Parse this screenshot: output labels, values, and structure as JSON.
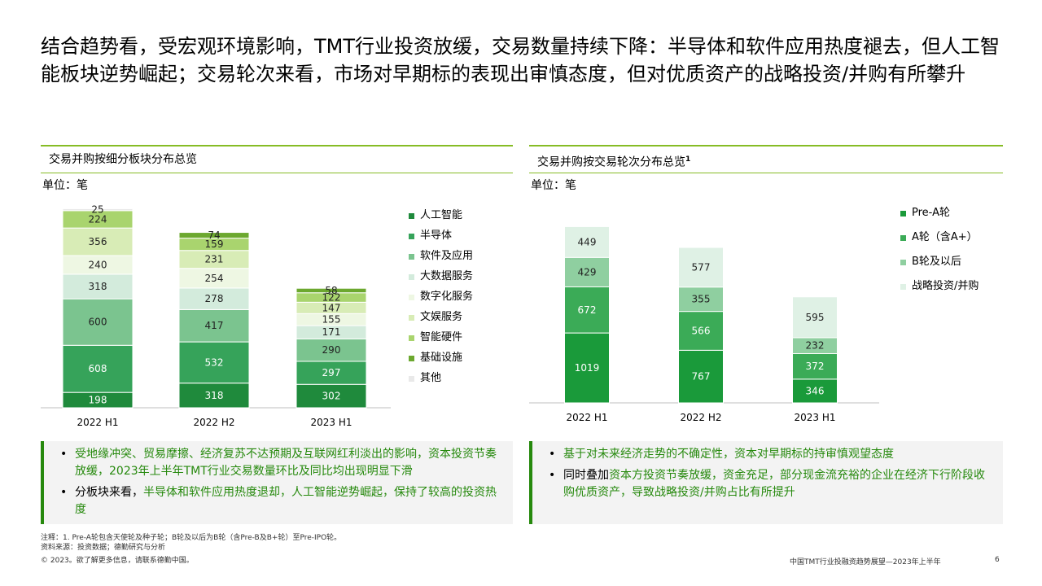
{
  "title": "结合趋势看，受宏观环境影响，TMT行业投资放缓，交易数量持续下降：半导体和软件应用热度褪去，但人工智能板块逆势崛起；交易轮次来看，市场对早期标的表现出审慎态度，但对优质资产的战略投资/并购有所攀升",
  "left_panel": {
    "heading": "交易并购按细分板块分布总览",
    "unit": "单位：笔",
    "legend": [
      "人工智能",
      "半导体",
      "软件及应用",
      "大数据服务",
      "数字化服务",
      "文娱服务",
      "智能硬件",
      "基础设施",
      "其他"
    ],
    "bullets": [
      {
        "text": "受地缘冲突、贸易摩擦、经济复苏不达预期及互联网红利淡出的影响，资本投资节奏放缓，2023年上半年TMT行业交易数量环比及同比均出现明显下滑",
        "highlight": false
      },
      {
        "prefix": "分板块来看，",
        "text": "半导体和软件应用热度退却，人工智能逆势崛起，保持了较高的投资热度",
        "highlight": true
      }
    ]
  },
  "right_panel": {
    "heading": "交易并购按交易轮次分布总览",
    "heading_sup": "1",
    "unit": "单位：笔",
    "legend": [
      "Pre-A轮",
      "A轮（含A+）",
      "B轮及以后",
      "战略投资/并购"
    ],
    "bullets": [
      {
        "text": "基于对未来经济走势的不确定性，资本对早期标的持审慎观望态度",
        "highlight": true
      },
      {
        "prefix": "同时叠加",
        "text": "资本方投资节奏放缓，资金充足，部分现金流充裕的企业在经济下行阶段收购优质资产，导致战略投资/并购占比有所提升",
        "highlight": false
      }
    ]
  },
  "chart_data": [
    {
      "type": "bar",
      "stacked": true,
      "title": "交易并购按细分板块分布总览",
      "ylabel": "单位：笔",
      "categories": [
        "2022 H1",
        "2022 H2",
        "2023 H1"
      ],
      "series": [
        {
          "name": "人工智能",
          "values": [
            198,
            318,
            302
          ],
          "color": "#1f8a3c"
        },
        {
          "name": "半导体",
          "values": [
            608,
            532,
            297
          ],
          "color": "#36a35a"
        },
        {
          "name": "软件及应用",
          "values": [
            600,
            417,
            290
          ],
          "color": "#7bc48f"
        },
        {
          "name": "大数据服务",
          "values": [
            318,
            278,
            171
          ],
          "color": "#d3ebdc"
        },
        {
          "name": "数字化服务",
          "values": [
            240,
            254,
            155
          ],
          "color": "#eef7e3"
        },
        {
          "name": "文娱服务",
          "values": [
            356,
            231,
            147
          ],
          "color": "#d8ecb6"
        },
        {
          "name": "智能硬件",
          "values": [
            224,
            159,
            122
          ],
          "color": "#a9d46e"
        },
        {
          "name": "基础设施",
          "values": [
            0,
            74,
            58
          ],
          "color": "#6ca82f"
        },
        {
          "name": "其他",
          "values": [
            25,
            0,
            0
          ],
          "color": "#e9e9e9"
        }
      ],
      "labels_per_bar": [
        [
          "198",
          "608",
          "600",
          "318",
          "240",
          "356",
          "224",
          "",
          "25"
        ],
        [
          "318",
          "532",
          "417",
          "278",
          "254",
          "231",
          "159",
          "74",
          ""
        ],
        [
          "302",
          "297",
          "290",
          "171",
          "155",
          "147",
          "122",
          "58",
          ""
        ]
      ],
      "legend_position": "right"
    },
    {
      "type": "bar",
      "stacked": true,
      "title": "交易并购按交易轮次分布总览",
      "ylabel": "单位：笔",
      "categories": [
        "2022 H1",
        "2022 H2",
        "2023 H1"
      ],
      "series": [
        {
          "name": "Pre-A轮",
          "values": [
            1019,
            767,
            346
          ],
          "color": "#1a9a3a"
        },
        {
          "name": "A轮（含A+）",
          "values": [
            672,
            566,
            372
          ],
          "color": "#3bab57"
        },
        {
          "name": "B轮及以后",
          "values": [
            429,
            355,
            232
          ],
          "color": "#8fcfa0"
        },
        {
          "name": "战略投资/并购",
          "values": [
            449,
            577,
            595
          ],
          "color": "#dff1e5"
        }
      ],
      "legend_position": "right"
    }
  ],
  "footer": {
    "note": "注释：1. Pre-A轮包含天使轮及种子轮；B轮及以后为B轮（含Pre-B及B+轮）至Pre-IPO轮。",
    "source": "资料来源：投资数据；德勤研究与分析",
    "copyright": "© 2023。欲了解更多信息，请联系德勤中国。",
    "report": "中国TMT行业投融资趋势展望—2023年上半年",
    "page": "6"
  }
}
